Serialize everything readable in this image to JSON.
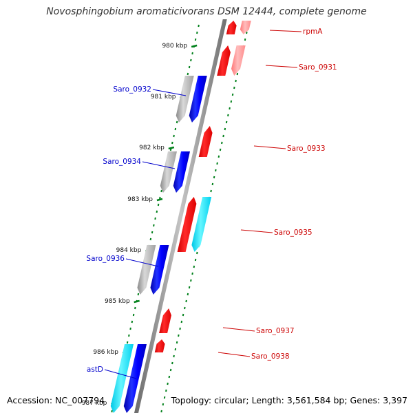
{
  "header": {
    "title": "Novosphingobium aromaticivorans DSM 12444, complete genome"
  },
  "footer": {
    "accession": "Accession: NC_007794",
    "summary": "Topology: circular; Length: 3,561,584 bp; Genes: 3,397"
  },
  "colors": {
    "backbone": "#8a8a8a",
    "forward_gene": "#0000ff",
    "forward_shadow": "#a8a8a8",
    "reverse_gene": "#ff0000",
    "reverse_shadow": "#ff8888",
    "rna_gene": "#00e5ff",
    "tick": "#00801a",
    "forward_label": "#0000cc",
    "reverse_label": "#cc0000"
  },
  "ticks": [
    {
      "label": "980 kbp"
    },
    {
      "label": "981 kbp"
    },
    {
      "label": "982 kbp"
    },
    {
      "label": "983 kbp"
    },
    {
      "label": "984 kbp"
    },
    {
      "label": "985 kbp"
    },
    {
      "label": "986 kbp"
    },
    {
      "label": "987 kbp"
    }
  ],
  "genes": [
    {
      "name": "rpmA",
      "strand": "reverse"
    },
    {
      "name": "Saro_0931",
      "strand": "reverse"
    },
    {
      "name": "Saro_0932",
      "strand": "forward"
    },
    {
      "name": "Saro_0933",
      "strand": "reverse"
    },
    {
      "name": "Saro_0934",
      "strand": "forward"
    },
    {
      "name": "Saro_0935",
      "strand": "reverse"
    },
    {
      "name": "Saro_0936",
      "strand": "forward"
    },
    {
      "name": "Saro_0937",
      "strand": "reverse"
    },
    {
      "name": "Saro_0938",
      "strand": "reverse"
    },
    {
      "name": "astD",
      "strand": "forward"
    }
  ]
}
